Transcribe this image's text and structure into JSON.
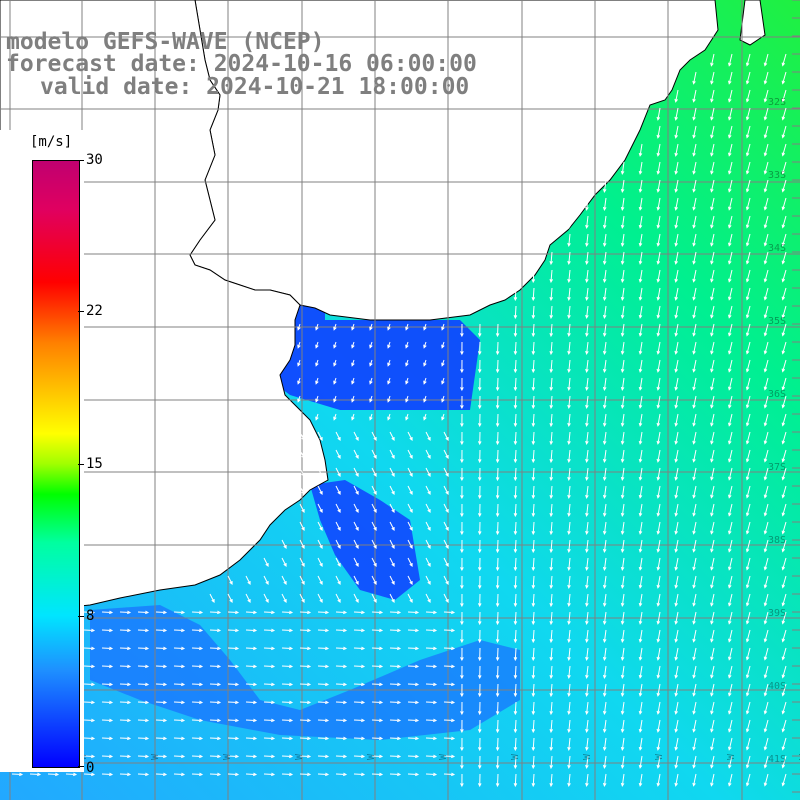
{
  "title": {
    "line1": "modelo GEFS-WAVE (NCEP)",
    "line2": "forecast date: 2024-10-16 06:00:00",
    "line3": "valid date: 2024-10-21 18:00:00"
  },
  "colorbar": {
    "unit": "[m/s]",
    "ticks": [
      "30",
      "22",
      "15",
      "8",
      "0"
    ],
    "tick_values": [
      30,
      22,
      15,
      8,
      0
    ],
    "min": 0,
    "max": 30
  },
  "grid": {
    "lat_labels": [
      "32S",
      "33S",
      "34S",
      "35S",
      "36S",
      "37S",
      "38S",
      "39S",
      "40S",
      "41S"
    ],
    "lon_labels": [
      "W",
      "W",
      "W",
      "W",
      "W",
      "W",
      "W",
      "W",
      "W",
      "W",
      "W",
      "W"
    ]
  },
  "colors": {
    "land": "#ffffff",
    "coast": "#000000",
    "grid": "#808080",
    "arrow": "#ffffff",
    "title": "#7f7f7f"
  }
}
